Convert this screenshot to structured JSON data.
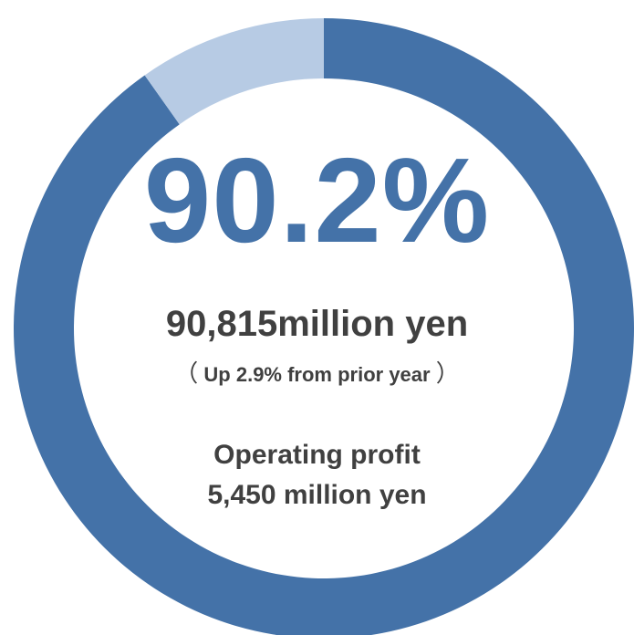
{
  "chart_data": {
    "type": "pie",
    "donut": true,
    "slices": [
      {
        "value": 90.2,
        "color": "#4472a8"
      },
      {
        "value": 9.8,
        "color": "#b7cbe4"
      }
    ]
  },
  "center": {
    "percent_label": "90.2%",
    "amount_label": "90,815million yen",
    "change_open": "（",
    "change_label": "Up 2.9% from prior year",
    "change_close": "）",
    "operating_profit_label": "Operating profit",
    "operating_profit_value": "5,450 million yen"
  },
  "colors": {
    "accent": "#4472a8",
    "remainder": "#b7cbe4",
    "text": "#404040"
  }
}
